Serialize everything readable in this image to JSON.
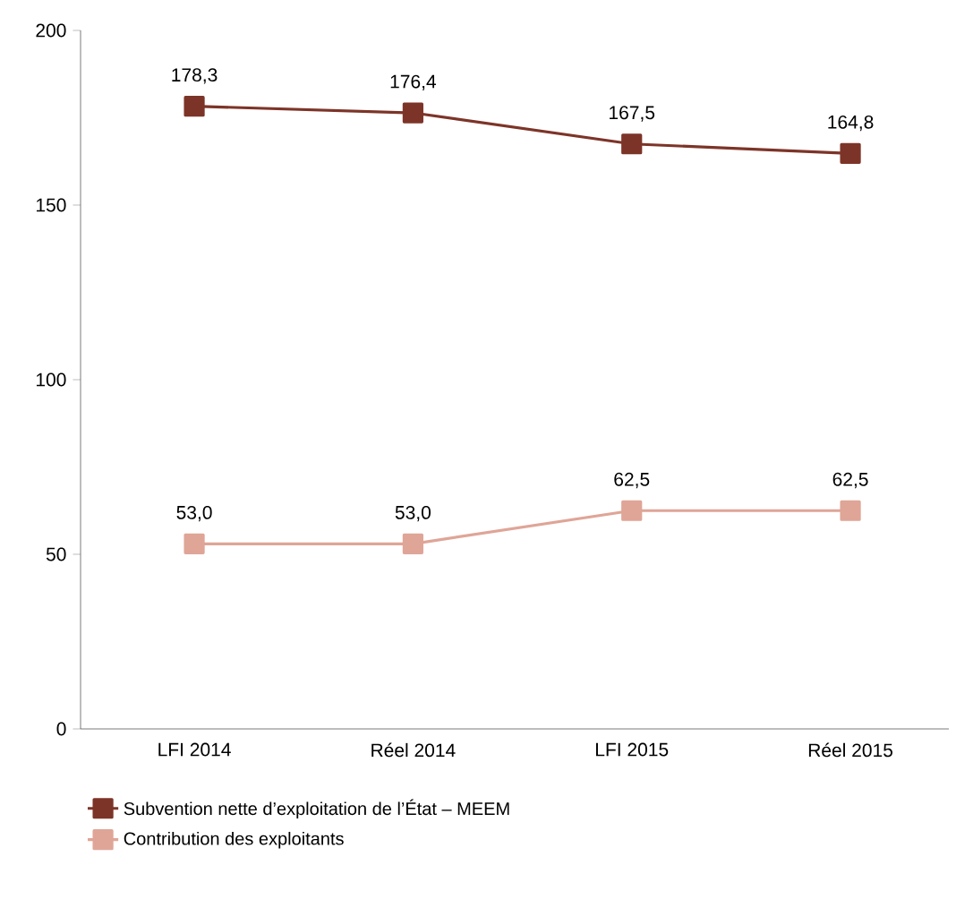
{
  "chart_data": {
    "type": "line",
    "categories": [
      "LFI 2014",
      "Réel 2014",
      "LFI 2015",
      "Réel 2015"
    ],
    "series": [
      {
        "name": "Subvention nette d’exploitation de l’État – MEEM",
        "color": "#7d3428",
        "values": [
          178.3,
          176.4,
          167.5,
          164.8
        ],
        "value_labels": [
          "178,3",
          "176,4",
          "167,5",
          "164,8"
        ]
      },
      {
        "name": "Contribution des exploitants",
        "color": "#dfa597",
        "values": [
          53.0,
          53.0,
          62.5,
          62.5
        ],
        "value_labels": [
          "53,0",
          "53,0",
          "62,5",
          "62,5"
        ]
      }
    ],
    "ylim": [
      0,
      200
    ],
    "yticks": [
      0,
      50,
      100,
      150,
      200
    ],
    "grid": false,
    "legend": "bottom",
    "marker": "square",
    "line_style": "solid"
  }
}
